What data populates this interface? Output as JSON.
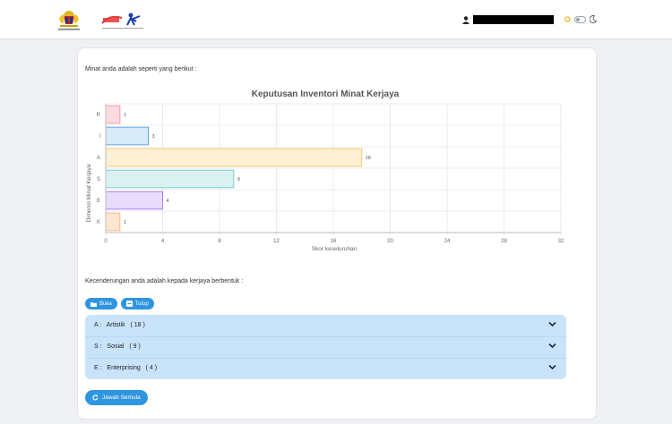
{
  "header": {
    "user_name": "",
    "theme_icons": [
      "sun-icon",
      "toggle",
      "moon-icon"
    ]
  },
  "main": {
    "intro_text": "Minat anda adalah seperti yang berikut :",
    "tendency_text": "Kecenderungan anda adalah kepada kerjaya berbentuk :",
    "buttons": {
      "open_label": "Buka",
      "close_label": "Tutup"
    },
    "accordion": [
      {
        "code": "A :",
        "name": "Artistik",
        "score": "( 18 )"
      },
      {
        "code": "S :",
        "name": "Sosial",
        "score": "( 9 )"
      },
      {
        "code": "E :",
        "name": "Enterprising",
        "score": "( 4 )"
      }
    ],
    "retry_label": "Jawab Semula"
  },
  "chart_data": {
    "type": "bar",
    "orientation": "horizontal",
    "title": "Keputusan Inventori Minat Kerjaya",
    "xlabel": "Skor keseluruhan",
    "ylabel": "Dimensi Minat Kerjaya",
    "categories": [
      "R",
      "I",
      "A",
      "S",
      "E",
      "K"
    ],
    "values": [
      1,
      3,
      18,
      9,
      4,
      1
    ],
    "xlim": [
      0,
      32
    ],
    "xticks": [
      0,
      4,
      8,
      12,
      16,
      20,
      24,
      28,
      32
    ],
    "grid": true,
    "colors": [
      {
        "fill": "#fbdce2",
        "stroke": "#f38ea3"
      },
      {
        "fill": "#d6eaf8",
        "stroke": "#4f9fd6"
      },
      {
        "fill": "#fdf0d5",
        "stroke": "#f7c566"
      },
      {
        "fill": "#d9f1f1",
        "stroke": "#6ecac8"
      },
      {
        "fill": "#e8dcfc",
        "stroke": "#9f76f3"
      },
      {
        "fill": "#fde6d2",
        "stroke": "#f4b27d"
      }
    ]
  }
}
